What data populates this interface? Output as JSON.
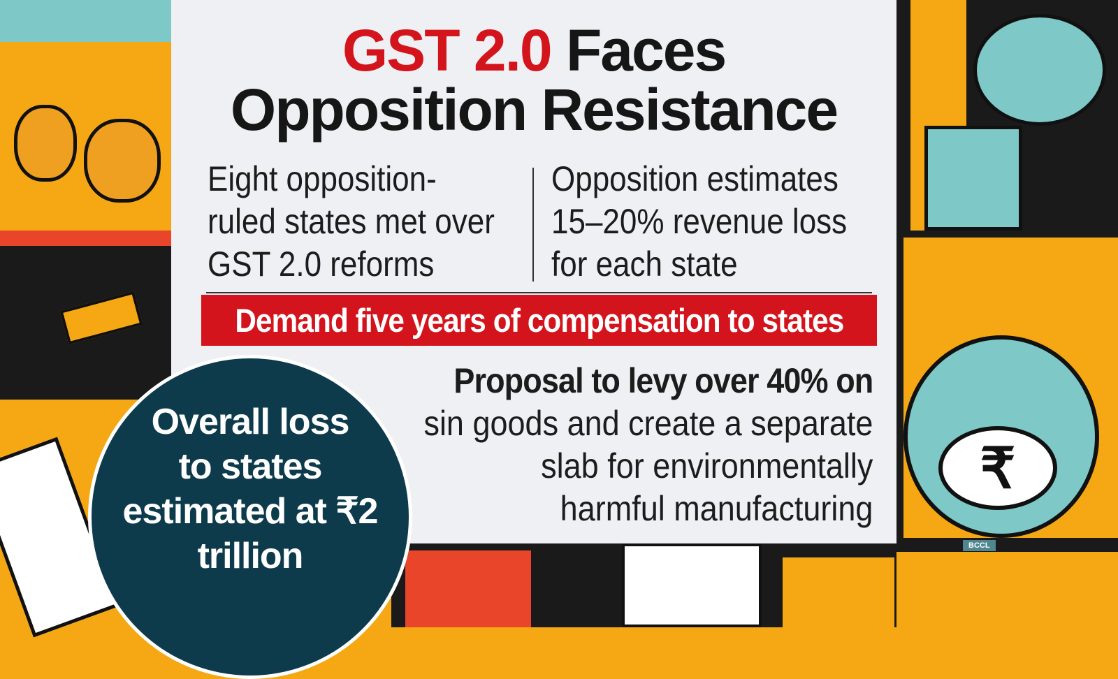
{
  "headline": {
    "highlight": "GST 2.0",
    "line1_rest": " Faces",
    "line2": "Opposition Resistance"
  },
  "left_column": [
    "Eight opposition-",
    "ruled states met over",
    "GST 2.0 reforms"
  ],
  "right_column": [
    "Opposition estimates",
    "15–20% revenue loss",
    "for each state"
  ],
  "banner": "Demand five years of compensation to states",
  "proposal": {
    "bold": "Proposal to levy over 40% on",
    "lines": [
      "sin goods and create a separate",
      "slab for environmentally",
      "harmful manufacturing"
    ]
  },
  "circle": [
    "Overall loss",
    "to states",
    "estimated at ₹2",
    "trillion"
  ],
  "credit": "BCCL",
  "colors": {
    "accent_red": "#d4141c",
    "circle": "#0d3b4c",
    "background": "#f5a814"
  }
}
